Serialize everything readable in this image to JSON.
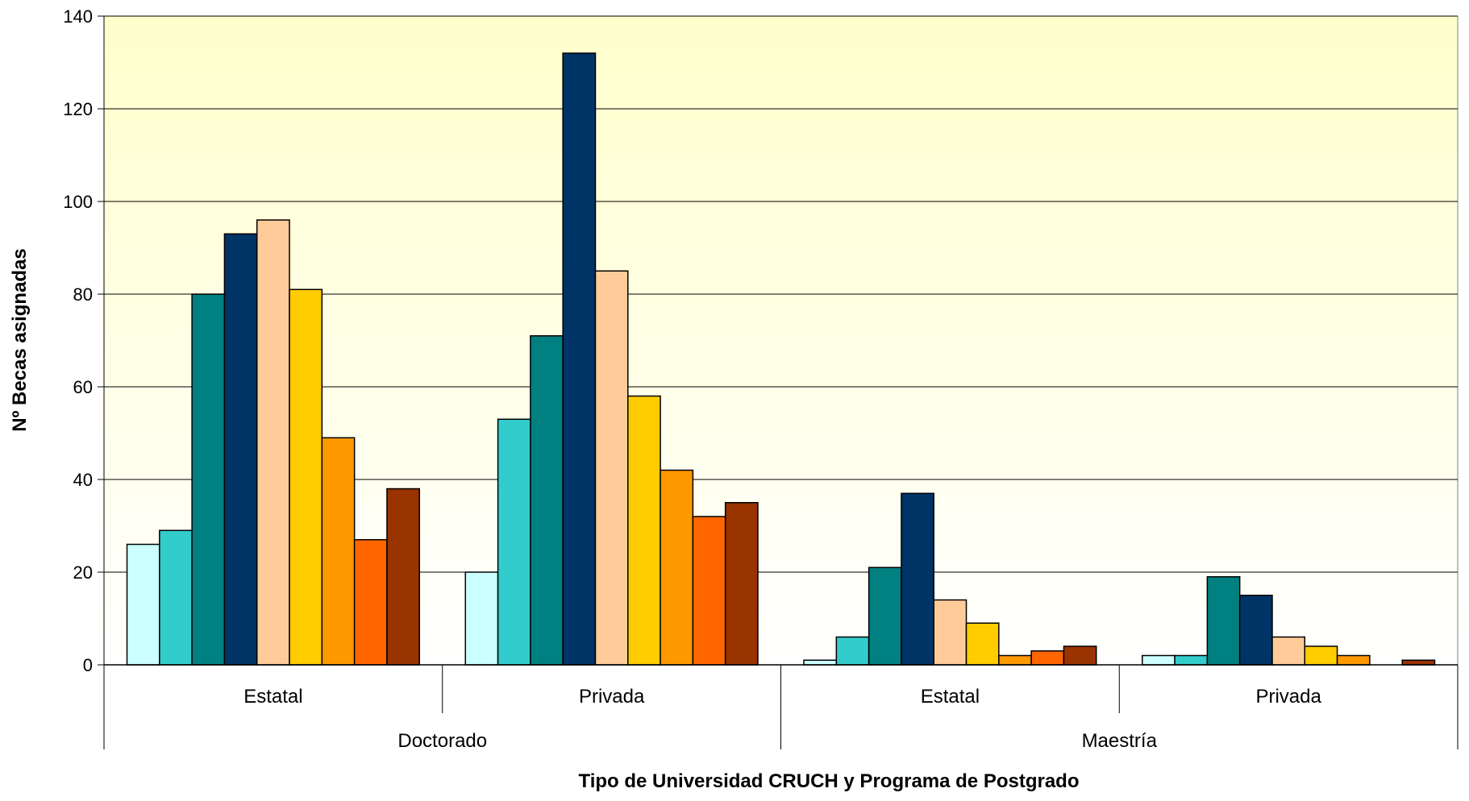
{
  "chart_data": {
    "type": "bar",
    "title": "",
    "xlabel": "Tipo de Universidad CRUCH y Programa de Postgrado",
    "ylabel": "Nº Becas asignadas",
    "ylim": [
      0,
      140
    ],
    "yticks": [
      0,
      20,
      40,
      60,
      80,
      100,
      120,
      140
    ],
    "grid": true,
    "legend": "none",
    "categories": [
      "Estatal",
      "Privada",
      "Estatal",
      "Privada"
    ],
    "groups": [
      {
        "label": "Doctorado",
        "span": [
          0,
          1
        ]
      },
      {
        "label": "Maestría",
        "span": [
          2,
          3
        ]
      }
    ],
    "series": [
      {
        "color": "#CCFFFF",
        "values": [
          26,
          20,
          1,
          2
        ]
      },
      {
        "color": "#33CCCC",
        "values": [
          29,
          53,
          6,
          2
        ]
      },
      {
        "color": "#008080",
        "values": [
          80,
          71,
          21,
          19
        ]
      },
      {
        "color": "#003366",
        "values": [
          93,
          132,
          37,
          15
        ]
      },
      {
        "color": "#FFCC99",
        "values": [
          96,
          85,
          14,
          6
        ]
      },
      {
        "color": "#FFCC00",
        "values": [
          81,
          58,
          9,
          4
        ]
      },
      {
        "color": "#FF9900",
        "values": [
          49,
          42,
          2,
          2
        ]
      },
      {
        "color": "#FF6600",
        "values": [
          27,
          32,
          3,
          0
        ]
      },
      {
        "color": "#993300",
        "values": [
          38,
          35,
          4,
          1
        ]
      }
    ],
    "colors": {
      "plot_bg_top": "#FFFFCC",
      "plot_bg_bottom": "#FFFFFF",
      "gridline": "#000000",
      "bar_border": "#000000"
    }
  }
}
